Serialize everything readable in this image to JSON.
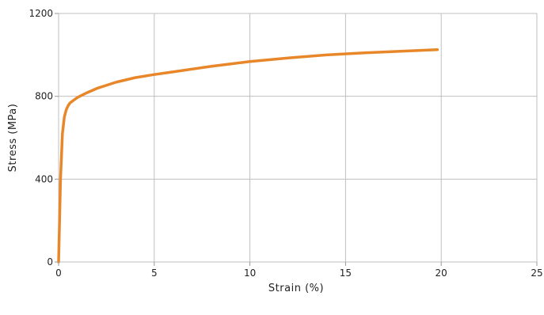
{
  "chart_data": {
    "type": "line",
    "title": "",
    "xlabel": "Strain (%)",
    "ylabel": "Stress (MPa)",
    "xlim": [
      0,
      25
    ],
    "ylim": [
      0,
      1200
    ],
    "xticks": [
      0,
      5,
      10,
      15,
      20,
      25
    ],
    "yticks": [
      0,
      400,
      800,
      1200
    ],
    "xtick_labels": [
      "0",
      "5",
      "10",
      "15",
      "20",
      "25"
    ],
    "ytick_labels": [
      "0",
      "400",
      "800",
      "1200"
    ],
    "grid": true,
    "legend": "none",
    "series": [
      {
        "color": "#e8872a",
        "x": [
          0,
          0.1,
          0.2,
          0.3,
          0.4,
          0.5,
          0.6,
          0.8,
          1.0,
          1.5,
          2,
          3,
          4,
          5,
          6,
          8,
          10,
          12,
          14,
          16,
          18,
          19.8
        ],
        "y": [
          0,
          400,
          620,
          700,
          735,
          755,
          768,
          782,
          795,
          818,
          838,
          868,
          890,
          905,
          918,
          945,
          968,
          985,
          1000,
          1010,
          1018,
          1025
        ]
      }
    ]
  }
}
